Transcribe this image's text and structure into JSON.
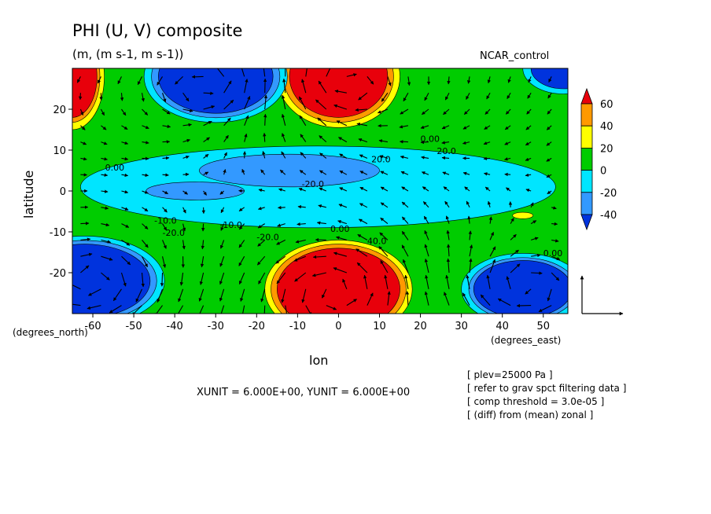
{
  "chart_data": {
    "type": "heatmap",
    "title": "PHI (U, V) composite",
    "units": "(m, (m s-1, m s-1))",
    "run_label": "NCAR_control",
    "xlabel": "lon",
    "ylabel": "latitude",
    "x_units_label": "(degrees_east)",
    "y_units_label": "(degrees_north)",
    "xlim": [
      -65,
      56
    ],
    "ylim": [
      -30,
      30
    ],
    "xticks": [
      -60,
      -50,
      -40,
      -30,
      -20,
      -10,
      0,
      10,
      20,
      30,
      40,
      50
    ],
    "yticks": [
      -20,
      -10,
      0,
      10,
      20
    ],
    "colorbar": {
      "levels": [
        60,
        40,
        20,
        0,
        -20,
        -40
      ],
      "colors": [
        "#e8000b",
        "#ff9900",
        "#ffff00",
        "#00cc00",
        "#00e5ff",
        "#3399ff",
        "#0033dd"
      ]
    },
    "contour_labels": [
      "0.00",
      "-20.0",
      "-10.0",
      "-20.0",
      "0.00",
      "0.00",
      "20.0",
      "20.0",
      "-20.0",
      "-10.0",
      "0.00",
      "40.0"
    ],
    "vector_units": "XUNIT = 6.000E+00, YUNIT = 6.000E+00",
    "notes": [
      "[ plev=25000 Pa ]",
      "[ refer to grav spct filtering data ]",
      "[ comp threshold = 3.0e-05 ]",
      "[ (diff) from (mean) zonal ]"
    ]
  }
}
